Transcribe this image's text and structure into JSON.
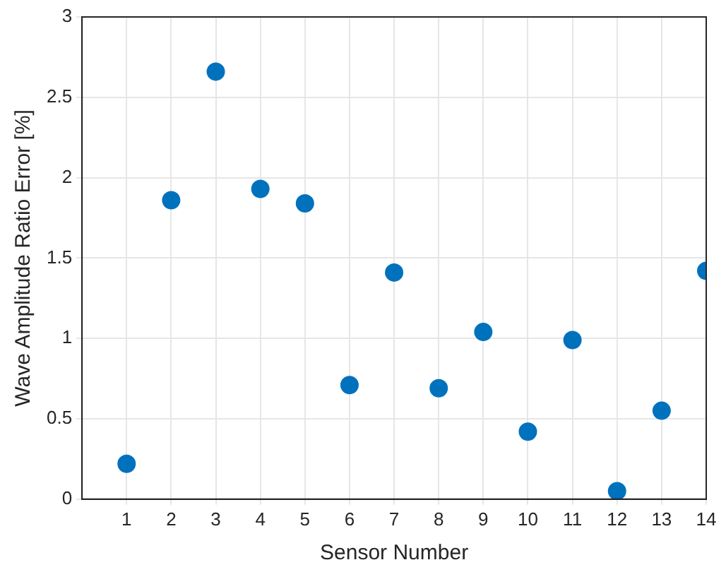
{
  "chart_data": {
    "type": "scatter",
    "xlabel": "Sensor Number",
    "ylabel": "Wave Amplitude Ratio Error [%]",
    "x": [
      1,
      2,
      3,
      4,
      5,
      6,
      7,
      8,
      9,
      10,
      11,
      12,
      13,
      14
    ],
    "values": [
      0.22,
      1.86,
      2.66,
      1.93,
      1.84,
      0.71,
      1.41,
      0.69,
      1.04,
      0.42,
      0.99,
      0.05,
      0.55,
      1.42
    ],
    "color": "#0072bd",
    "marker": "circle",
    "grid": true,
    "xlim": [
      0,
      14
    ],
    "xticks": [
      1,
      2,
      3,
      4,
      5,
      6,
      7,
      8,
      9,
      10,
      11,
      12,
      13,
      14
    ],
    "ylim": [
      0,
      3
    ],
    "yticks": [
      0,
      0.5,
      1,
      1.5,
      2,
      2.5,
      3
    ]
  }
}
